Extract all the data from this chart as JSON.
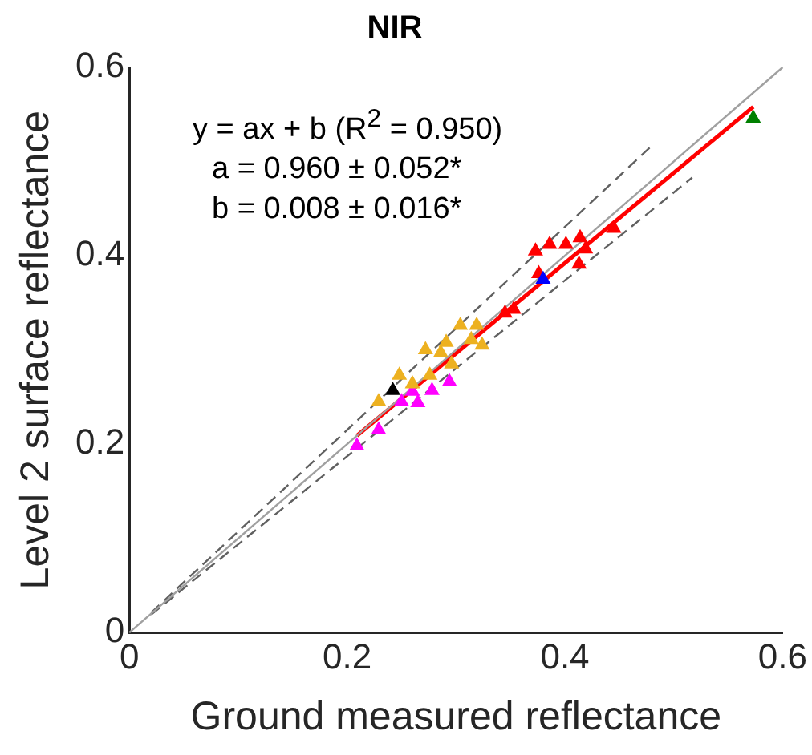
{
  "chart_data": {
    "type": "scatter",
    "title": "NIR",
    "xlabel": "Ground measured reflectance",
    "ylabel": "Level 2 surface reflectance",
    "xlim": [
      0,
      0.6
    ],
    "ylim": [
      0,
      0.6
    ],
    "xticks": [
      0,
      0.2,
      0.4,
      0.6
    ],
    "yticks": [
      0,
      0.2,
      0.4,
      0.6
    ],
    "grid": false,
    "legend": false,
    "annotations": [
      "y = ax + b (R$^{2}$ = 0.950)",
      "a = 0.960 ± 0.052*",
      "b = 0.008 ± 0.016*"
    ],
    "series": [
      {
        "type": "line",
        "color": "#a0a0a0",
        "marker": "none",
        "line_style": "solid",
        "x": [
          0,
          0.6
        ],
        "values": [
          0,
          0.6
        ]
      },
      {
        "type": "line",
        "color": "#606060",
        "marker": "none",
        "line_style": "dashed",
        "x": [
          0.02,
          0.481
        ],
        "values": [
          0.021,
          0.518
        ]
      },
      {
        "type": "line",
        "color": "#606060",
        "marker": "none",
        "line_style": "dashed",
        "x": [
          0.02,
          0.517
        ],
        "values": [
          0.019,
          0.483
        ]
      },
      {
        "color": "#edb120",
        "marker": "triangle",
        "x": [
          0.229,
          0.248,
          0.272,
          0.286,
          0.304,
          0.319,
          0.324,
          0.296,
          0.276,
          0.26,
          0.314,
          0.291
        ],
        "values": [
          0.245,
          0.273,
          0.3,
          0.297,
          0.326,
          0.326,
          0.305,
          0.285,
          0.273,
          0.264,
          0.311,
          0.308
        ]
      },
      {
        "color": "#ff00ff",
        "marker": "triangle",
        "x": [
          0.209,
          0.229,
          0.25,
          0.265,
          0.278,
          0.294,
          0.26
        ],
        "values": [
          0.198,
          0.215,
          0.245,
          0.244,
          0.257,
          0.266,
          0.256
        ]
      },
      {
        "color": "#000000",
        "marker": "triangle",
        "x": [
          0.242
        ],
        "values": [
          0.257
        ]
      },
      {
        "color": "#0000ff",
        "marker": "triangle",
        "x": [
          0.38
        ],
        "values": [
          0.375
        ]
      },
      {
        "color": "#ff0000",
        "marker": "triangle",
        "x": [
          0.373,
          0.386,
          0.401,
          0.414,
          0.419,
          0.413,
          0.376,
          0.445,
          0.353,
          0.345
        ],
        "values": [
          0.405,
          0.412,
          0.412,
          0.419,
          0.407,
          0.391,
          0.381,
          0.429,
          0.343,
          0.339
        ]
      },
      {
        "color": "#008000",
        "marker": "triangle",
        "x": [
          0.573
        ],
        "values": [
          0.546
        ]
      },
      {
        "type": "line",
        "color": "#ff0000",
        "marker": "none",
        "line_style": "solid",
        "x": [
          0.209,
          0.573
        ],
        "values": [
          0.209,
          0.558
        ]
      }
    ]
  }
}
